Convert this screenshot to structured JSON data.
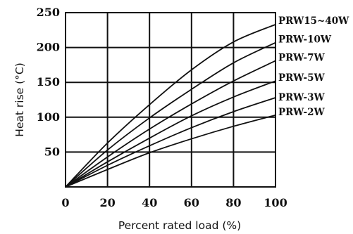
{
  "chart_data": {
    "type": "line",
    "xlabel": "Percent rated load (%)",
    "ylabel": "Heat rise (°C)",
    "xlim": [
      0,
      100
    ],
    "ylim": [
      0,
      250
    ],
    "xticks": [
      0,
      20,
      40,
      60,
      80,
      100
    ],
    "yticks": [
      50,
      100,
      150,
      200,
      250
    ],
    "grid": true,
    "x": [
      0,
      20,
      40,
      60,
      80,
      100
    ],
    "series": [
      {
        "name": "PRW15~40W",
        "values": [
          0,
          63,
          118,
          168,
          208,
          233
        ]
      },
      {
        "name": "PRW-10W",
        "values": [
          0,
          53,
          99,
          140,
          178,
          207
        ]
      },
      {
        "name": "PRW-7W",
        "values": [
          0,
          43,
          83,
          119,
          152,
          181
        ]
      },
      {
        "name": "PRW-5W",
        "values": [
          0,
          36,
          70,
          102,
          129,
          152
        ]
      },
      {
        "name": "PRW-3W",
        "values": [
          0,
          31,
          59,
          85,
          108,
          128
        ]
      },
      {
        "name": "PRW-2W",
        "values": [
          0,
          25,
          49,
          69,
          87,
          103
        ]
      }
    ]
  }
}
